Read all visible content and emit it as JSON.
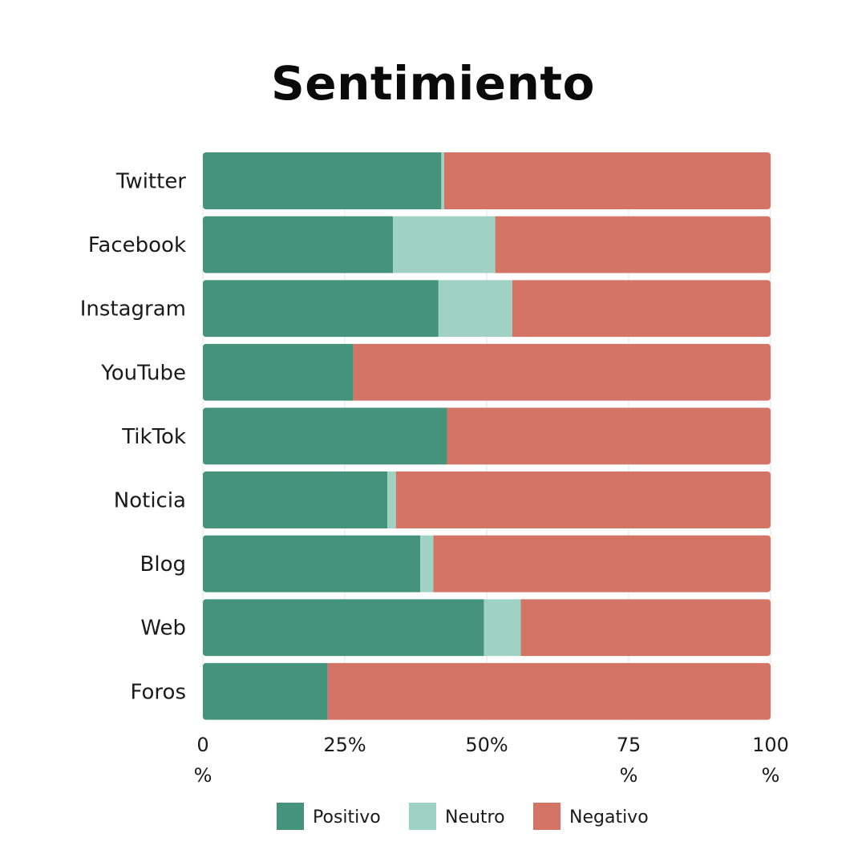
{
  "chart_data": {
    "type": "bar",
    "orientation": "horizontal",
    "stacked": true,
    "title": "Sentimiento",
    "categories": [
      "Twitter",
      "Facebook",
      "Instagram",
      "YouTube",
      "TikTok",
      "Noticia",
      "Blog",
      "Web",
      "Foros"
    ],
    "series": [
      {
        "name": "Positivo",
        "color": "#45937A",
        "values": [
          42,
          33.5,
          41.5,
          26.5,
          43,
          32.5,
          38.3,
          49.5,
          22
        ]
      },
      {
        "name": "Neutro",
        "color": "#9FD2C3",
        "values": [
          0.5,
          18,
          13,
          0,
          0,
          1.5,
          2.3,
          6.5,
          0
        ]
      },
      {
        "name": "Negativo",
        "color": "#D37466",
        "values": [
          57.5,
          48.5,
          45.5,
          73.5,
          57,
          66,
          59.4,
          44,
          78
        ]
      }
    ],
    "xlim": [
      0,
      100
    ],
    "xticks": [
      {
        "line1": "0",
        "line2": "%"
      },
      {
        "line1": "25%",
        "line2": ""
      },
      {
        "line1": "50%",
        "line2": ""
      },
      {
        "line1": "75",
        "line2": "%"
      },
      {
        "line1": "100",
        "line2": "%"
      }
    ],
    "xtick_values": [
      0,
      25,
      50,
      75,
      100
    ],
    "grid": true,
    "legend_position": "bottom-center"
  }
}
